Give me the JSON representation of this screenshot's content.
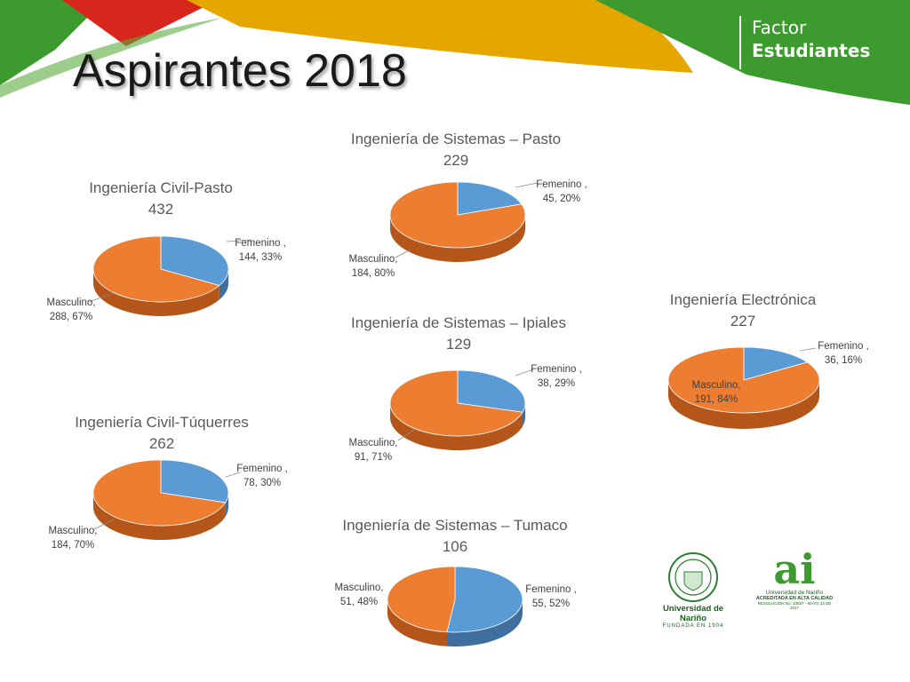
{
  "slide": {
    "title": "Aspirantes 2018",
    "brand": {
      "line1": "Factor",
      "line2": "Estudiantes"
    },
    "logos": [
      {
        "name": "universidad-de-narino-seal",
        "text": "Universidad de Nariño",
        "subtext": "FUNDADA EN 1904"
      },
      {
        "name": "acreditacion-ai-logo",
        "text": "ai",
        "subtext": "Universidad de Nariño",
        "caption1": "ACREDITADA EN ALTA CALIDAD",
        "caption2": "RESOLUCIÓN No. 10567 - MAYO 23 DE 2017"
      }
    ],
    "colors": {
      "femenino": "#5b9bd5",
      "masculino": "#ed7d31",
      "green": "#3c9a2e",
      "red": "#d9261c",
      "yellow": "#e5a600"
    }
  },
  "chart_data": [
    {
      "type": "pie",
      "title": "Ingeniería Civil-Pasto",
      "total": "432",
      "slices": [
        {
          "name": "Femenino",
          "value": 144,
          "percent": 33,
          "label": "Femenino ,\n144, 33%"
        },
        {
          "name": "Masculino",
          "value": 288,
          "percent": 67,
          "label": "Masculino,\n288, 67%"
        }
      ]
    },
    {
      "type": "pie",
      "title": "Ingeniería de Sistemas – Pasto",
      "total": "229",
      "slices": [
        {
          "name": "Femenino",
          "value": 45,
          "percent": 20,
          "label": "Femenino ,\n45, 20%"
        },
        {
          "name": "Masculino",
          "value": 184,
          "percent": 80,
          "label": "Masculino,\n184, 80%"
        }
      ]
    },
    {
      "type": "pie",
      "title": "Ingeniería Electrónica",
      "total": "227",
      "slices": [
        {
          "name": "Femenino",
          "value": 36,
          "percent": 16,
          "label": "Femenino ,\n36, 16%"
        },
        {
          "name": "Masculino",
          "value": 191,
          "percent": 84,
          "label": "Masculino,\n191, 84%"
        }
      ]
    },
    {
      "type": "pie",
      "title": "Ingeniería de Sistemas – Ipiales",
      "total": "129",
      "slices": [
        {
          "name": "Femenino",
          "value": 38,
          "percent": 29,
          "label": "Femenino ,\n38, 29%"
        },
        {
          "name": "Masculino",
          "value": 91,
          "percent": 71,
          "label": "Masculino,\n91, 71%"
        }
      ]
    },
    {
      "type": "pie",
      "title": "Ingeniería Civil-Túquerres",
      "total": "262",
      "slices": [
        {
          "name": "Femenino",
          "value": 78,
          "percent": 30,
          "label": "Femenino ,\n78, 30%"
        },
        {
          "name": "Masculino",
          "value": 184,
          "percent": 70,
          "label": "Masculino,\n184, 70%"
        }
      ]
    },
    {
      "type": "pie",
      "title": "Ingeniería de Sistemas – Tumaco",
      "total": "106",
      "slices": [
        {
          "name": "Femenino",
          "value": 55,
          "percent": 52,
          "label": "Femenino ,\n55, 52%"
        },
        {
          "name": "Masculino",
          "value": 51,
          "percent": 48,
          "label": "Masculino,\n51, 48%"
        }
      ]
    }
  ]
}
